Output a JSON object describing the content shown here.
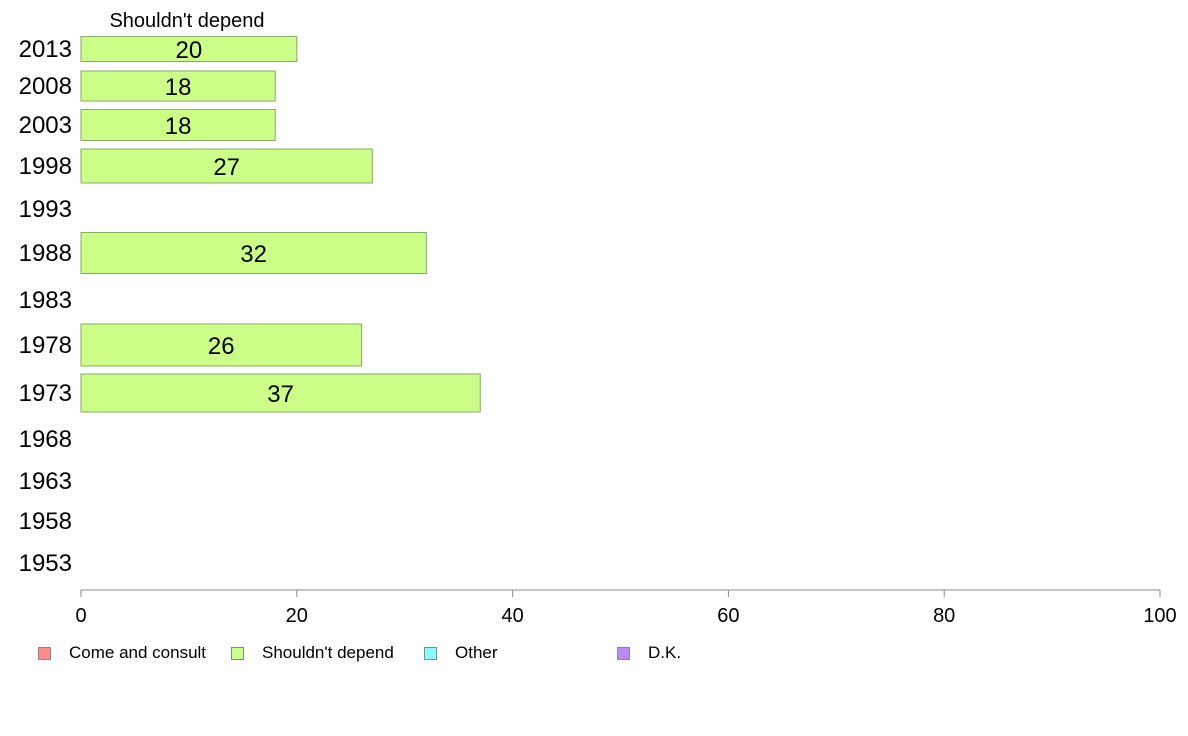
{
  "chart_data": {
    "type": "bar",
    "orientation": "horizontal",
    "panel_title": "Shouldn't depend",
    "categories": [
      "2013",
      "2008",
      "2003",
      "1998",
      "1993",
      "1988",
      "1983",
      "1978",
      "1973",
      "1968",
      "1963",
      "1958",
      "1953"
    ],
    "series": [
      {
        "name": "Shouldn't depend",
        "color": "#ccff88",
        "values": [
          20,
          18,
          18,
          27,
          null,
          32,
          null,
          26,
          37,
          null,
          null,
          null,
          null
        ],
        "labels": [
          "20",
          "18",
          "18",
          "27",
          "",
          "32",
          "",
          "26",
          "37",
          "",
          "",
          "",
          ""
        ]
      }
    ],
    "xlim": [
      0,
      100
    ],
    "xticks": [
      0,
      20,
      40,
      60,
      80,
      100
    ],
    "xtick_labels": [
      "0",
      "20",
      "40",
      "60",
      "80",
      "100"
    ],
    "grid": false,
    "legend_position": "bottom",
    "legend": [
      {
        "label": "Come and consult",
        "color": "#ff8888"
      },
      {
        "label": "Shouldn't depend",
        "color": "#ccff88"
      },
      {
        "label": "Other",
        "color": "#88ffff"
      },
      {
        "label": "D.K.",
        "color": "#bb88ff"
      }
    ]
  }
}
